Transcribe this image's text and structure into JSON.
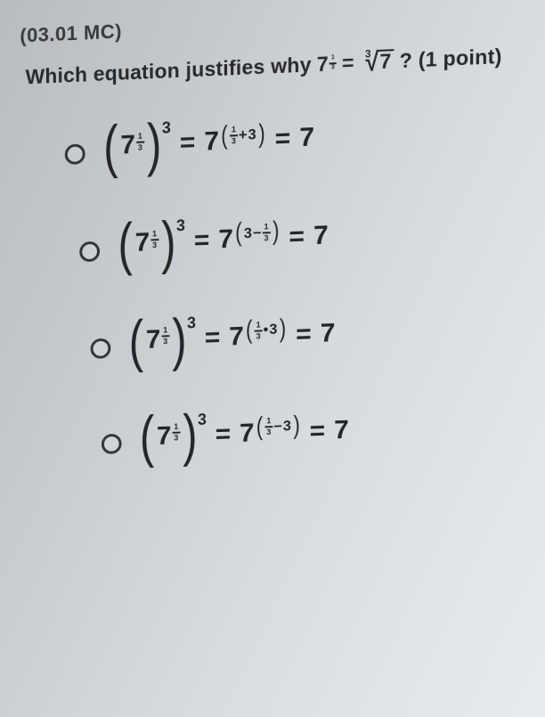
{
  "header_cut": "(03.01 MC)",
  "question": {
    "prefix": "Which equation justifies why",
    "base1": "7",
    "frac_n": "1",
    "frac_d": "3",
    "eq": "=",
    "root_index": "3",
    "radicand": "7",
    "suffix": "? (1 point)"
  },
  "options": [
    {
      "lhs_base": "7",
      "lhs_fn": "1",
      "lhs_fd": "3",
      "lhs_outer": "3",
      "mid_base": "7",
      "mid_l": "1",
      "mid_ld": "3",
      "mid_op": "+",
      "mid_r": "3",
      "rhs": "7",
      "frac_left": true
    },
    {
      "lhs_base": "7",
      "lhs_fn": "1",
      "lhs_fd": "3",
      "lhs_outer": "3",
      "mid_base": "7",
      "mid_l": "3",
      "mid_op": "−",
      "mid_r": "1",
      "mid_rd": "3",
      "rhs": "7",
      "frac_left": false
    },
    {
      "lhs_base": "7",
      "lhs_fn": "1",
      "lhs_fd": "3",
      "lhs_outer": "3",
      "mid_base": "7",
      "mid_l": "1",
      "mid_ld": "3",
      "mid_op": "•",
      "mid_r": "3",
      "rhs": "7",
      "frac_left": true
    },
    {
      "lhs_base": "7",
      "lhs_fn": "1",
      "lhs_fd": "3",
      "lhs_outer": "3",
      "mid_base": "7",
      "mid_l": "1",
      "mid_ld": "3",
      "mid_op": "−",
      "mid_r": "3",
      "rhs": "7",
      "frac_left": true
    }
  ],
  "eq": "="
}
